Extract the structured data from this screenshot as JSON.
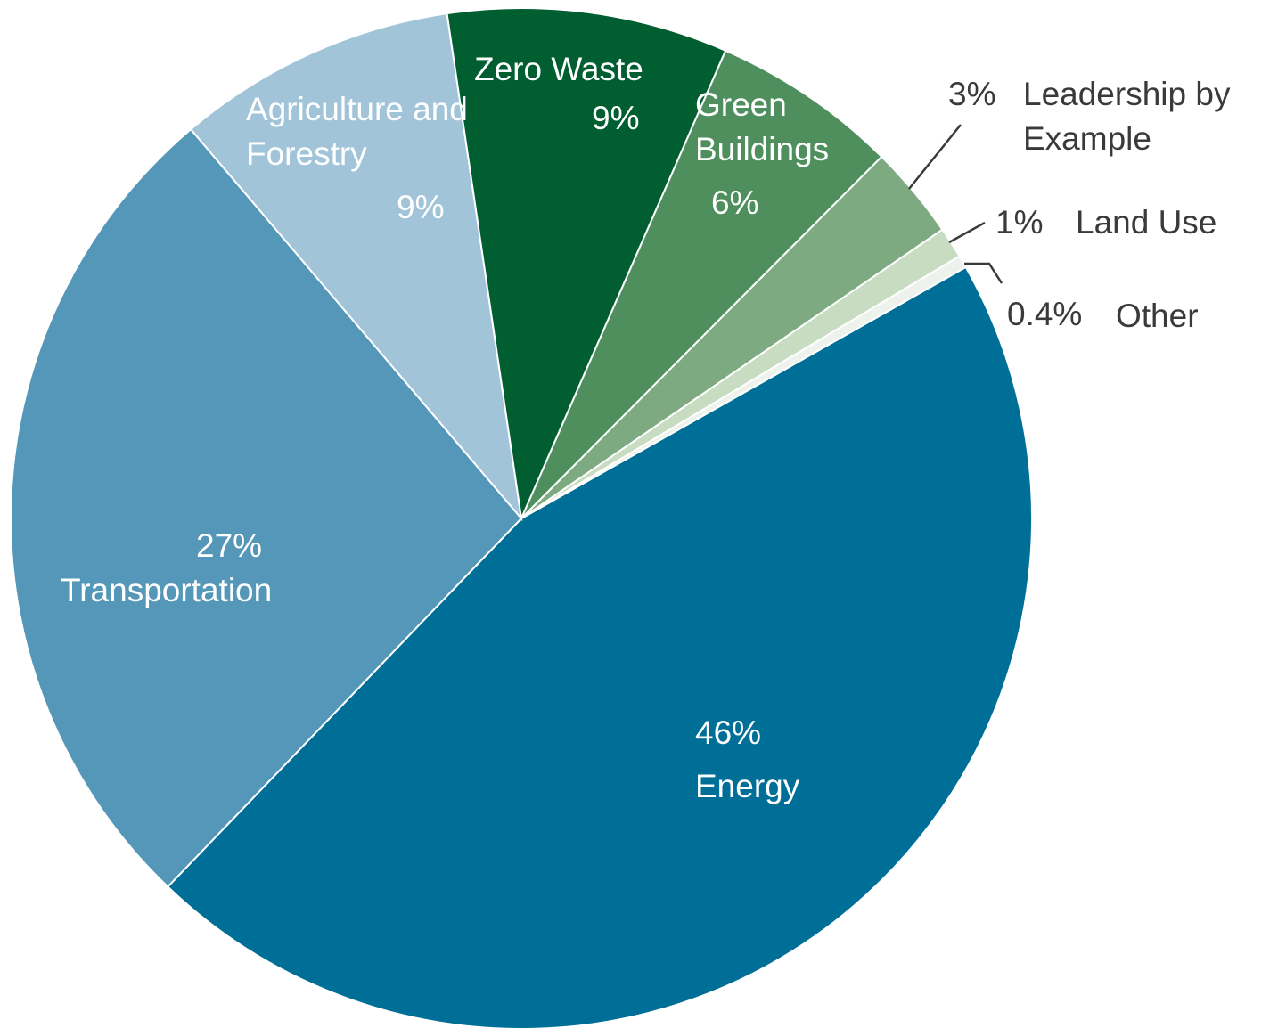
{
  "chart_data": {
    "type": "pie",
    "categories": [
      "Energy",
      "Transportation",
      "Agriculture and Forestry",
      "Zero Waste",
      "Green Buildings",
      "Leadership by Example",
      "Land Use",
      "Other"
    ],
    "values": [
      46,
      27,
      9,
      9,
      6,
      3,
      1,
      0.4
    ],
    "value_labels": [
      "46%",
      "27%",
      "9%",
      "9%",
      "6%",
      "3%",
      "1%",
      "0.4%"
    ],
    "colors": [
      "#006f98",
      "#5497b8",
      "#a2c4d8",
      "#005e31",
      "#4f8f5d",
      "#7eaa82",
      "#c8dcc2",
      "#eef2ec"
    ]
  }
}
